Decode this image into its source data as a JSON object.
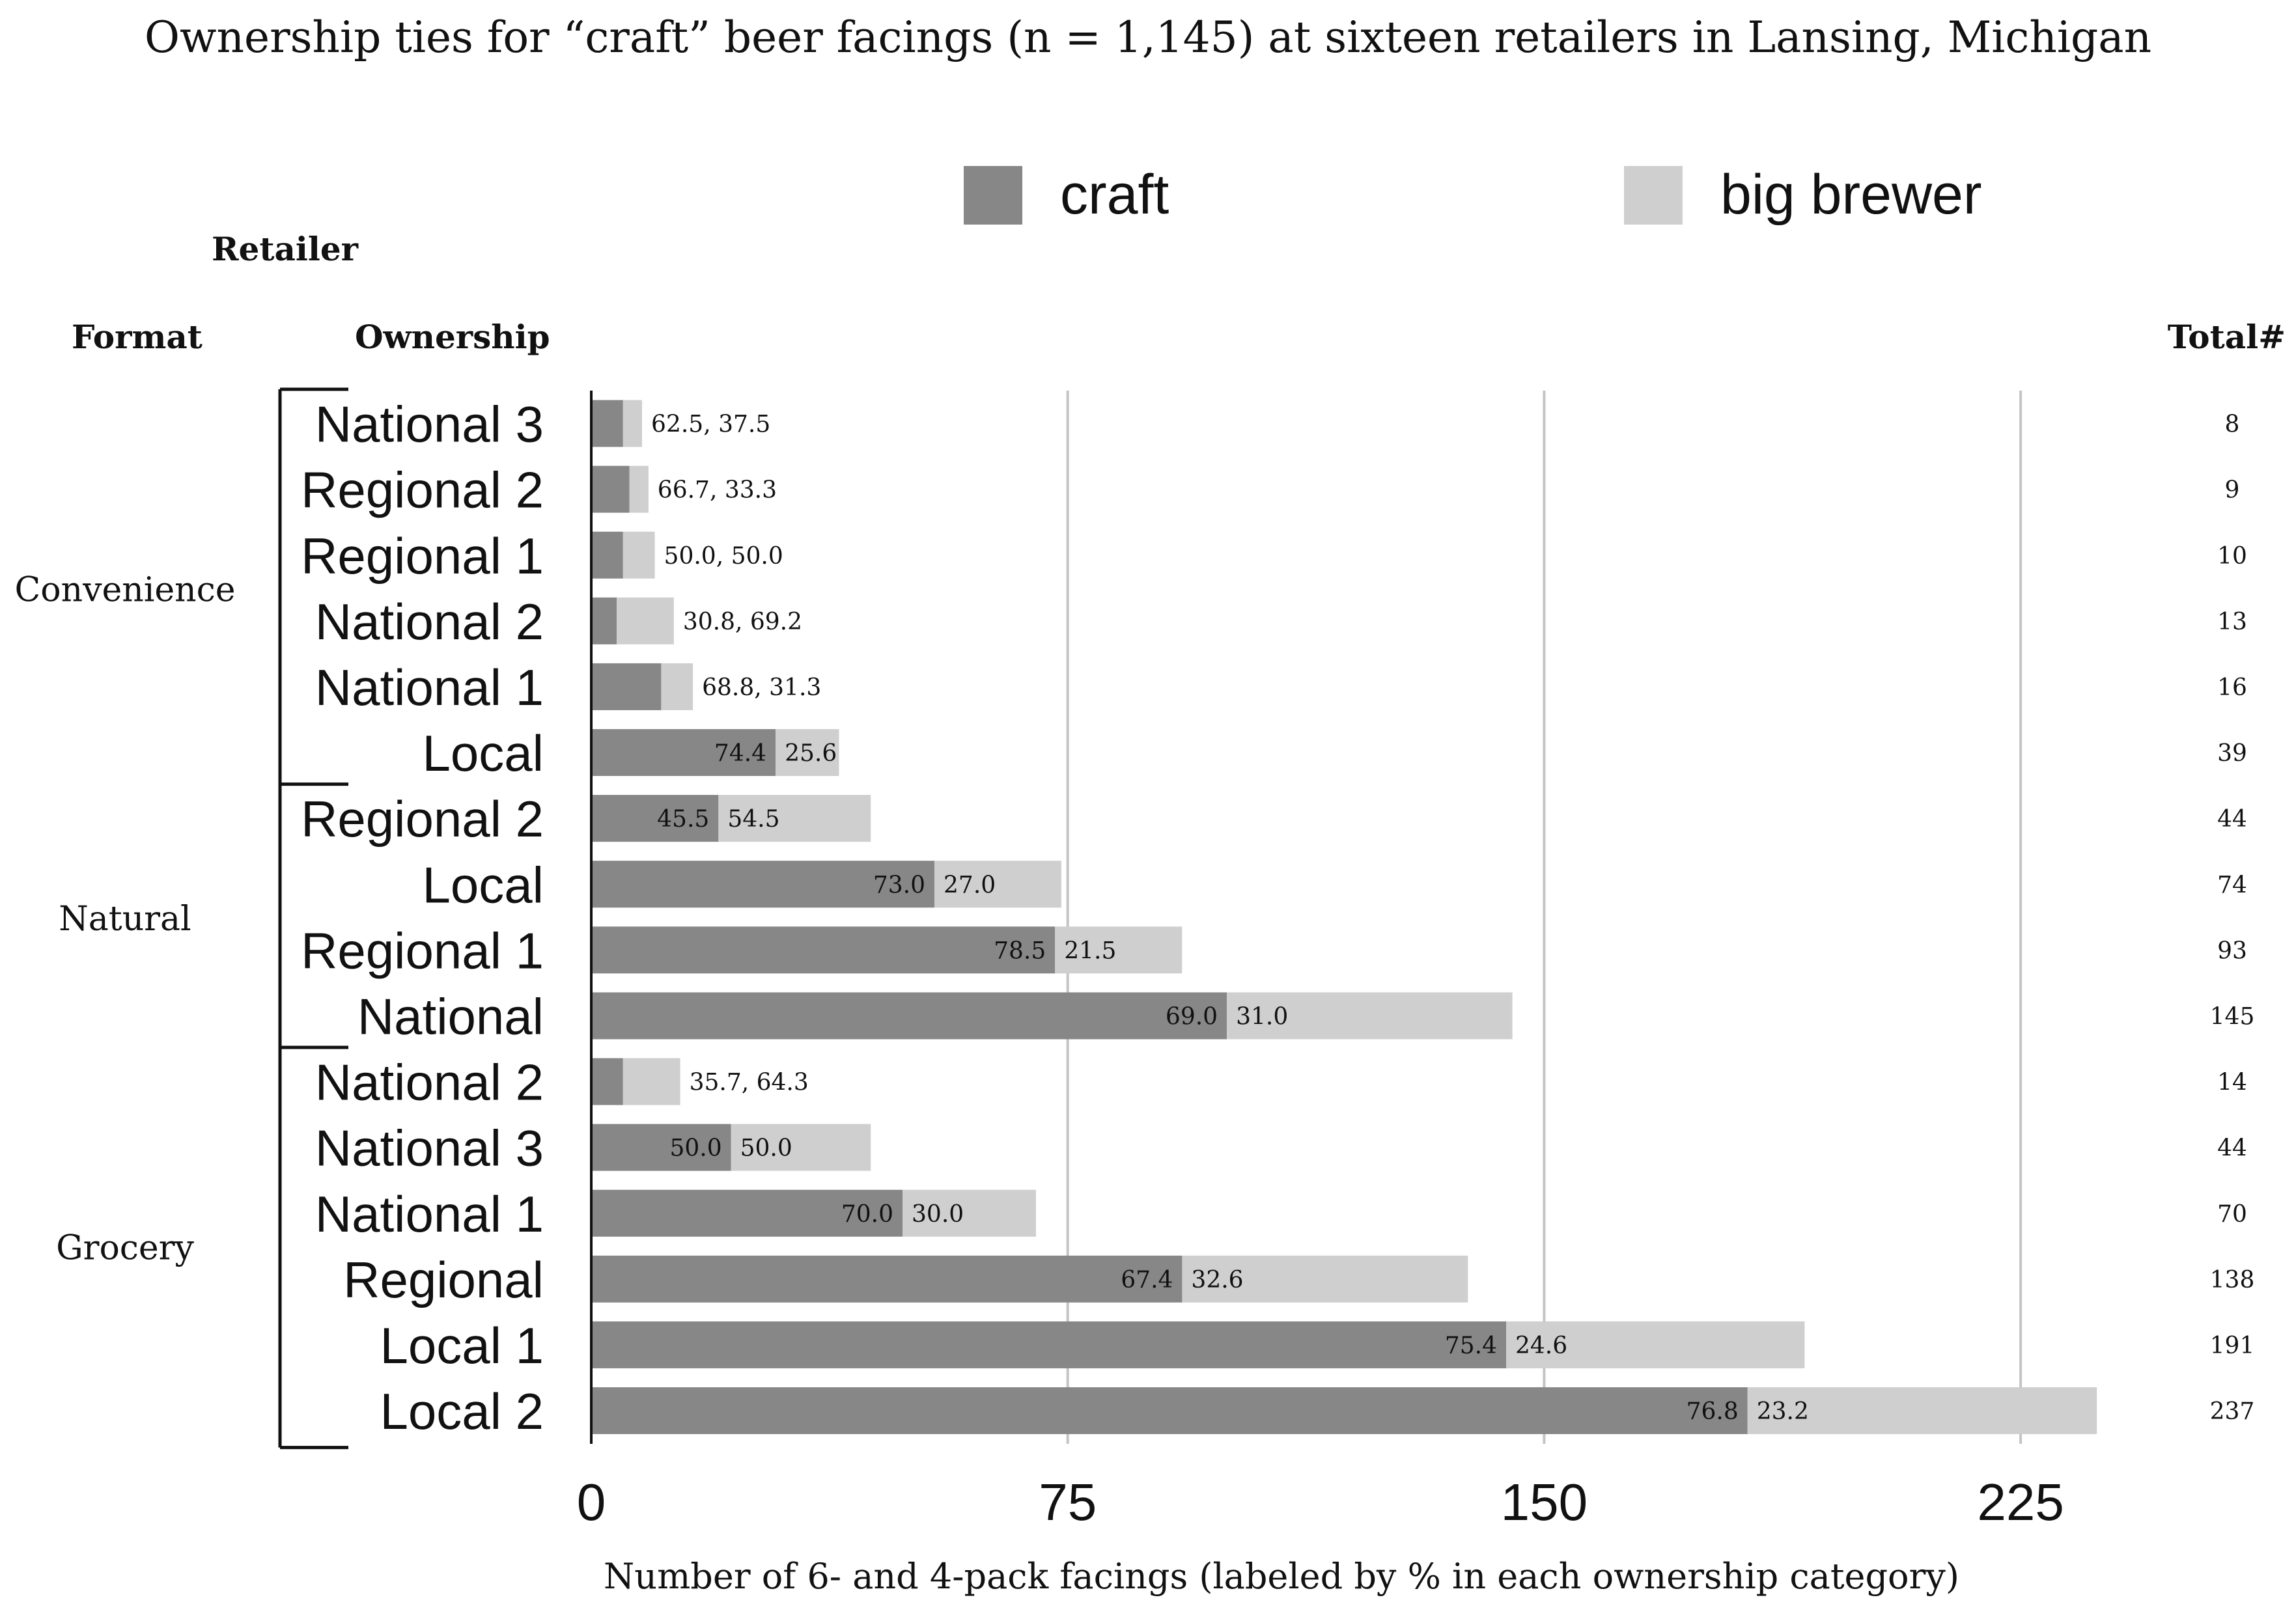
{
  "chart_data": {
    "type": "bar",
    "stacked": true,
    "orientation": "horizontal",
    "title": "Ownership ties for “craft” beer facings (n = 1,145) at sixteen retailers in Lansing, Michigan",
    "xlabel": "Number of 6- and 4-pack facings (labeled by % in each ownership category)",
    "xlim": [
      0,
      240
    ],
    "xticks": [
      "0",
      "75",
      "150",
      "225"
    ],
    "xtick_values": [
      0,
      75,
      150,
      225
    ],
    "grid": true,
    "legend_position": "top",
    "header": {
      "retailer": "Retailer",
      "format": "Format",
      "ownership": "Ownership",
      "total": "Total#"
    },
    "series": [
      {
        "name": "craft",
        "color": "#878787"
      },
      {
        "name": "big brewer",
        "color": "#cfcfcf"
      }
    ],
    "groups": [
      {
        "format": "Convenience",
        "rows": [
          {
            "ownership": "National 3",
            "total": 8,
            "craft_pct": 62.5,
            "big_pct": 37.5,
            "label": "62.5, 37.5"
          },
          {
            "ownership": "Regional 2",
            "total": 9,
            "craft_pct": 66.7,
            "big_pct": 33.3,
            "label": "66.7, 33.3"
          },
          {
            "ownership": "Regional 1",
            "total": 10,
            "craft_pct": 50.0,
            "big_pct": 50.0,
            "label": "50.0, 50.0"
          },
          {
            "ownership": "National 2",
            "total": 13,
            "craft_pct": 30.8,
            "big_pct": 69.2,
            "label": "30.8, 69.2"
          },
          {
            "ownership": "National 1",
            "total": 16,
            "craft_pct": 68.8,
            "big_pct": 31.3,
            "label": "68.8, 31.3"
          },
          {
            "ownership": "Local",
            "total": 39,
            "craft_pct": 74.4,
            "big_pct": 25.6,
            "craft_label": "74.4",
            "big_label": "25.6"
          }
        ]
      },
      {
        "format": "Natural",
        "rows": [
          {
            "ownership": "Regional 2",
            "total": 44,
            "craft_pct": 45.5,
            "big_pct": 54.5,
            "craft_label": "45.5",
            "big_label": "54.5"
          },
          {
            "ownership": "Local",
            "total": 74,
            "craft_pct": 73.0,
            "big_pct": 27.0,
            "craft_label": "73.0",
            "big_label": "27.0"
          },
          {
            "ownership": "Regional 1",
            "total": 93,
            "craft_pct": 78.5,
            "big_pct": 21.5,
            "craft_label": "78.5",
            "big_label": "21.5"
          },
          {
            "ownership": "National",
            "total": 145,
            "craft_pct": 69.0,
            "big_pct": 31.0,
            "craft_label": "69.0",
            "big_label": "31.0"
          }
        ]
      },
      {
        "format": "Grocery",
        "rows": [
          {
            "ownership": "National 2",
            "total": 14,
            "craft_pct": 35.7,
            "big_pct": 64.3,
            "label": "35.7, 64.3"
          },
          {
            "ownership": "National 3",
            "total": 44,
            "craft_pct": 50.0,
            "big_pct": 50.0,
            "craft_label": "50.0",
            "big_label": "50.0"
          },
          {
            "ownership": "National 1",
            "total": 70,
            "craft_pct": 70.0,
            "big_pct": 30.0,
            "craft_label": "70.0",
            "big_label": "30.0"
          },
          {
            "ownership": "Regional",
            "total": 138,
            "craft_pct": 67.4,
            "big_pct": 32.6,
            "craft_label": "67.4",
            "big_label": "32.6"
          },
          {
            "ownership": "Local 1",
            "total": 191,
            "craft_pct": 75.4,
            "big_pct": 24.6,
            "craft_label": "75.4",
            "big_label": "24.6"
          },
          {
            "ownership": "Local 2",
            "total": 237,
            "craft_pct": 76.8,
            "big_pct": 23.2,
            "craft_label": "76.8",
            "big_label": "23.2"
          }
        ]
      }
    ]
  }
}
